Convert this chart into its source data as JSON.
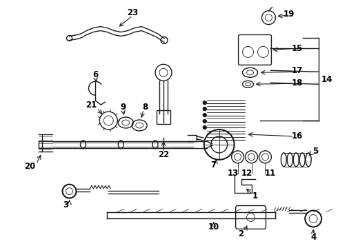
{
  "background_color": "#ffffff",
  "fig_width": 4.9,
  "fig_height": 3.6,
  "dpi": 100,
  "line_color": "#1a1a1a",
  "text_color": "#000000",
  "label_fontsize": 8.5,
  "bracket_color": "#111111"
}
